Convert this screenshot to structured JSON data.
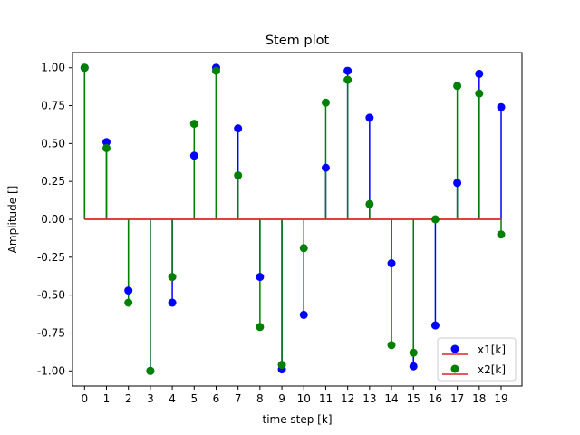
{
  "chart_data": {
    "type": "stem",
    "title": "Stem plot",
    "xlabel": "time step [k]",
    "ylabel": "Amplitude []",
    "xlim": [
      -0.55,
      19.95
    ],
    "ylim": [
      -1.1,
      1.1
    ],
    "x": [
      0,
      1,
      2,
      3,
      4,
      5,
      6,
      7,
      8,
      9,
      10,
      11,
      12,
      13,
      14,
      15,
      16,
      17,
      18,
      19
    ],
    "x_ticks": [
      "0",
      "1",
      "2",
      "3",
      "4",
      "5",
      "6",
      "7",
      "8",
      "9",
      "10",
      "11",
      "12",
      "13",
      "14",
      "15",
      "16",
      "17",
      "18",
      "19"
    ],
    "y_ticks": [
      "1.00",
      "0.75",
      "0.50",
      "0.25",
      "0.00",
      "-0.25",
      "-0.50",
      "-0.75",
      "-1.00"
    ],
    "y_tick_values": [
      1.0,
      0.75,
      0.5,
      0.25,
      0.0,
      -0.25,
      -0.5,
      -0.75,
      -1.0
    ],
    "grid": false,
    "legend_position": "lower-right",
    "baseline_color": "#d62728",
    "series": [
      {
        "name": "x1[k]",
        "color": "#0000ff",
        "values": [
          1.0,
          0.51,
          -0.47,
          -1.0,
          -0.55,
          0.42,
          1.0,
          0.6,
          -0.38,
          -0.99,
          -0.63,
          0.34,
          0.98,
          0.67,
          -0.29,
          -0.97,
          -0.7,
          0.24,
          0.96,
          0.74
        ]
      },
      {
        "name": "x2[k]",
        "color": "#008000",
        "values": [
          1.0,
          0.47,
          -0.55,
          -1.0,
          -0.38,
          0.63,
          0.98,
          0.29,
          -0.71,
          -0.96,
          -0.19,
          0.77,
          0.92,
          0.1,
          -0.83,
          -0.88,
          0.0,
          0.88,
          0.83,
          -0.1
        ]
      }
    ]
  }
}
